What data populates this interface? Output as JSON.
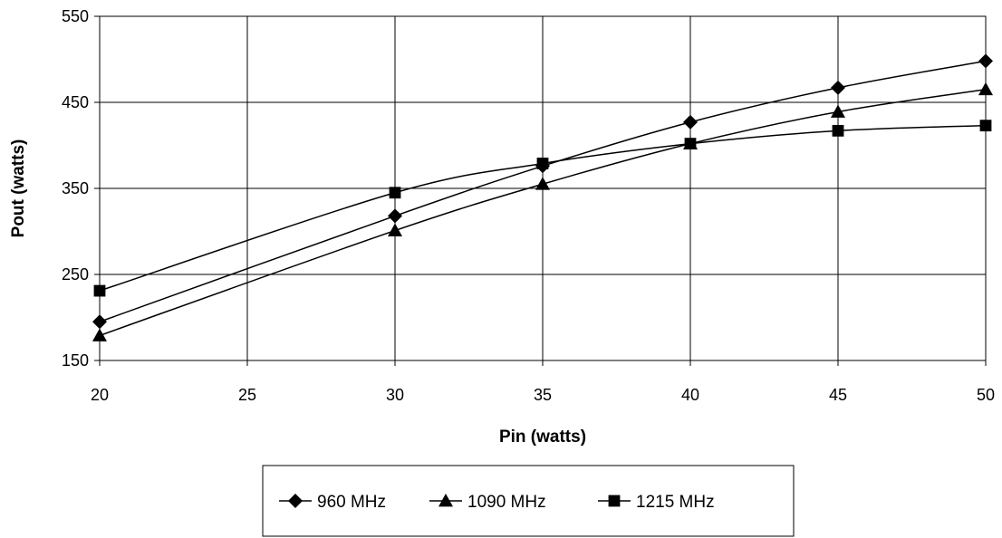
{
  "chart_data": {
    "type": "line",
    "title": "",
    "xlabel": "Pin (watts)",
    "ylabel": "Pout (watts)",
    "xlim": [
      20,
      50
    ],
    "ylim": [
      150,
      550
    ],
    "x_ticks": [
      20,
      25,
      30,
      35,
      40,
      45,
      50
    ],
    "y_ticks": [
      150,
      250,
      350,
      450,
      550
    ],
    "grid": true,
    "legend_position": "bottom",
    "series": [
      {
        "name": "960 MHz",
        "marker": "diamond",
        "color": "#000000",
        "x": [
          20,
          30,
          35,
          40,
          45,
          50
        ],
        "y": [
          195,
          318,
          376,
          427,
          467,
          498
        ]
      },
      {
        "name": "1090 MHz",
        "marker": "triangle",
        "color": "#000000",
        "x": [
          20,
          30,
          35,
          40,
          45,
          50
        ],
        "y": [
          179,
          301,
          355,
          402,
          439,
          465
        ]
      },
      {
        "name": "1215 MHz",
        "marker": "square",
        "color": "#000000",
        "x": [
          20,
          30,
          35,
          40,
          45,
          50
        ],
        "y": [
          231,
          345,
          379,
          402,
          417,
          423
        ]
      }
    ]
  }
}
